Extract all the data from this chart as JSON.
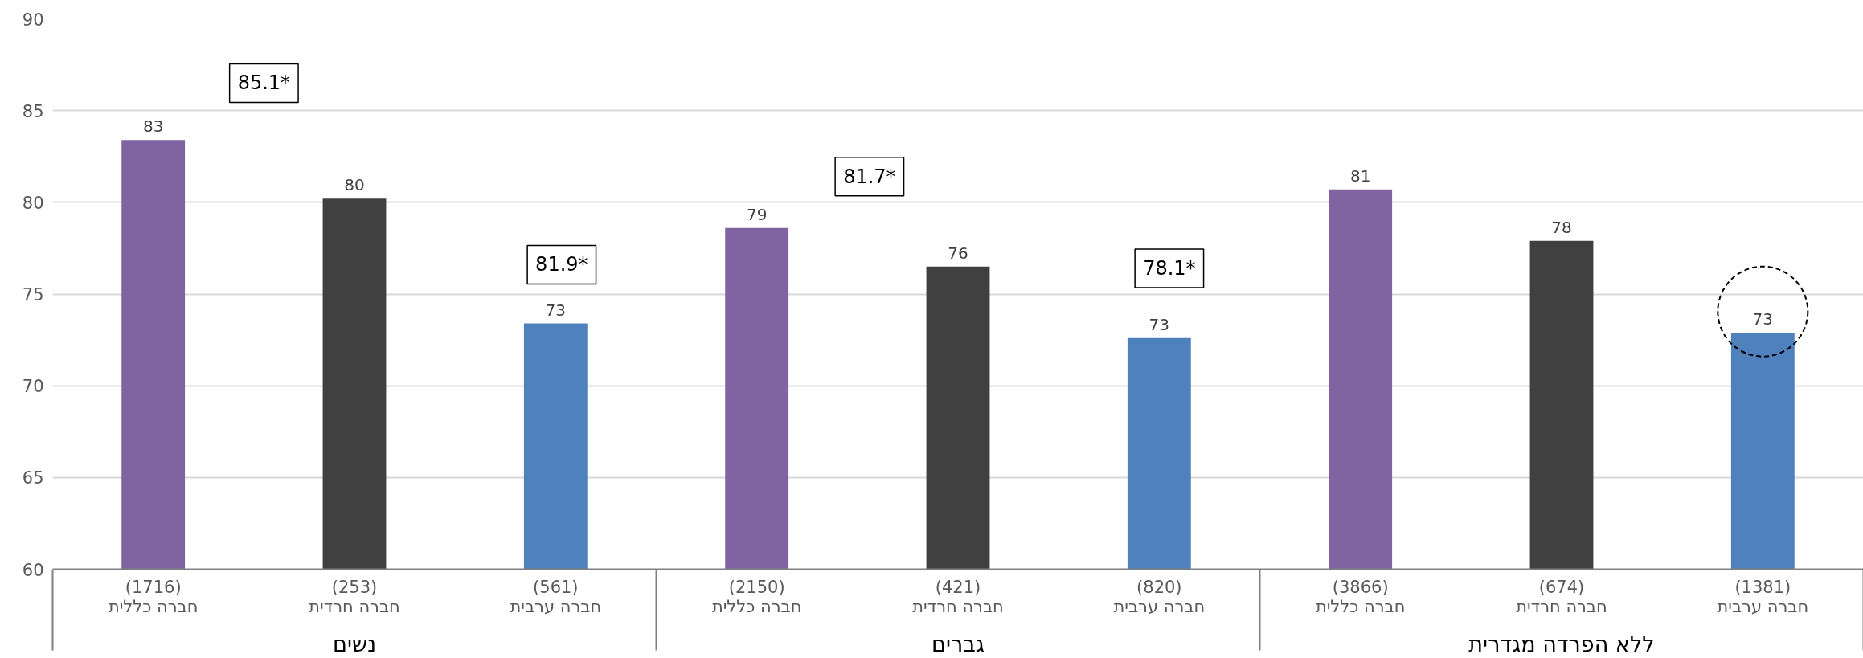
{
  "chart_data": {
    "type": "bar",
    "categories": [
      "(1716)\nחברה כללית",
      "(253)\nחברה חרדית",
      "(561)\nחברה ערבית",
      "(2150)\nחברה כללית",
      "(421)\nחברה חרדית",
      "(820)\nחברה ערבית",
      "(3866)\nחברה כללית",
      "(674)\nחברה חרדית",
      "(1381)\nחברה ערבית"
    ],
    "values": [
      83.4,
      80.2,
      73.4,
      78.6,
      76.5,
      72.6,
      80.7,
      77.9,
      72.9
    ],
    "colors": [
      "#8064a2",
      "#404040",
      "#4f81bd",
      "#8064a2",
      "#404040",
      "#4f81bd",
      "#8064a2",
      "#404040",
      "#4f81bd"
    ],
    "value_labels": [
      "83",
      "80",
      "73",
      "79",
      "76",
      "73",
      "81",
      "78",
      "73"
    ],
    "annotations": [
      "נשים",
      "גברים",
      "ללא הפרדה מגדרית",
      "85.1*",
      "81.9*",
      "81.7*",
      "78.1*"
    ],
    "ylim": [
      60,
      90
    ],
    "yticks": [
      60,
      65,
      70,
      75,
      80,
      85,
      90
    ],
    "grid": "y"
  }
}
